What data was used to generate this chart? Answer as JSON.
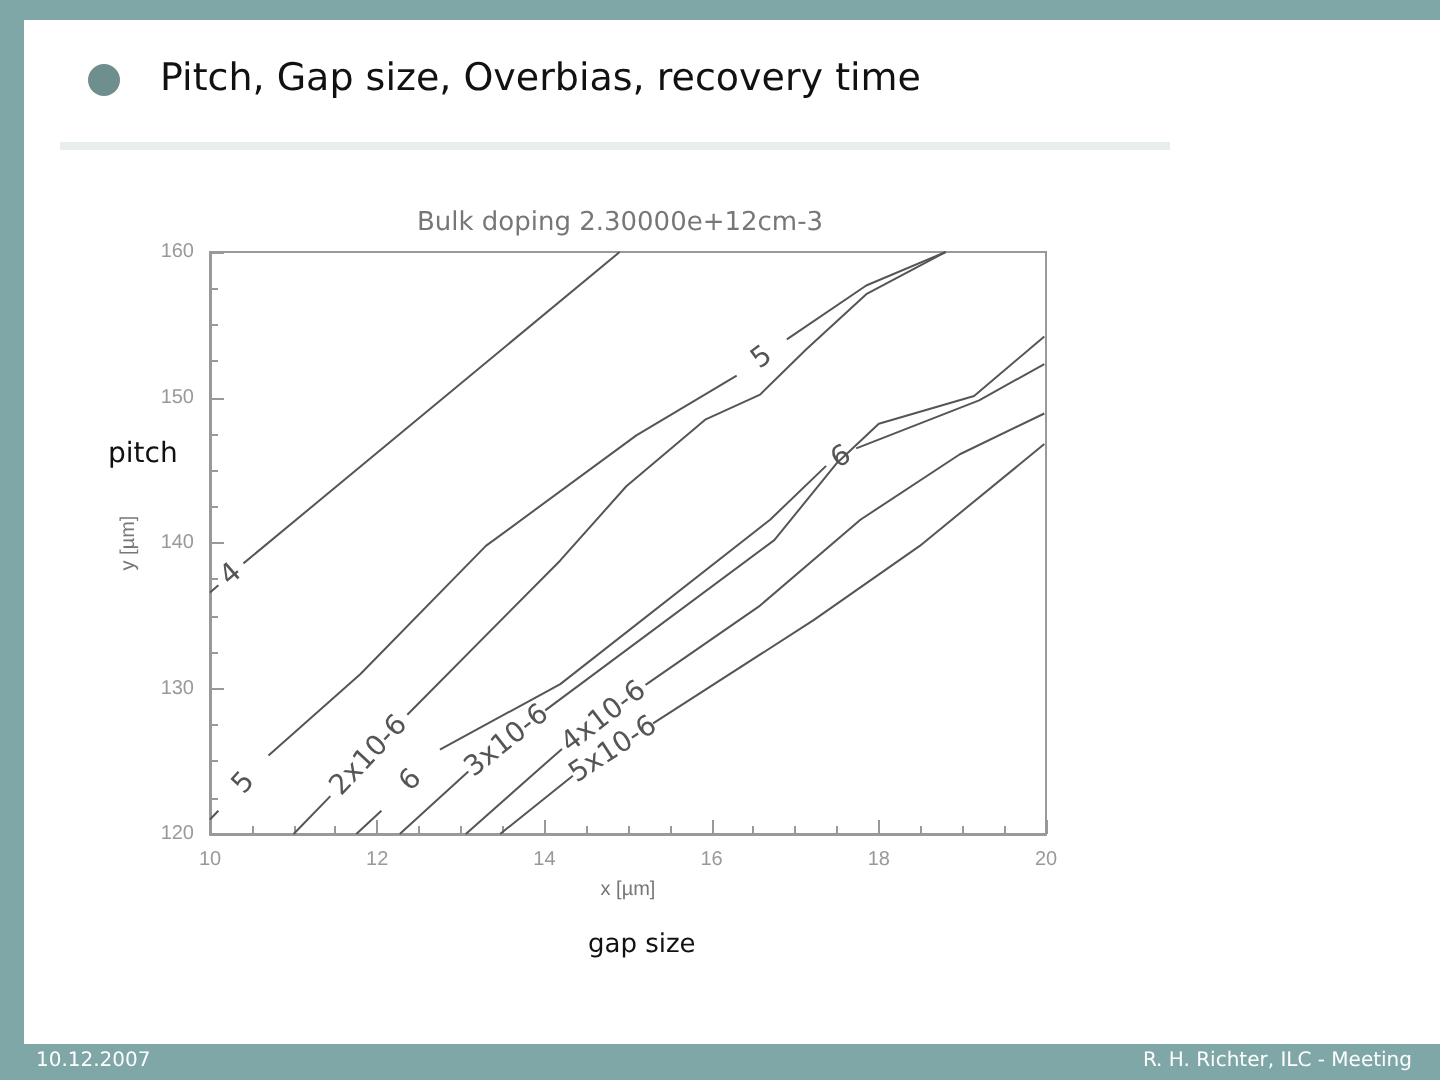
{
  "chart_data": {
    "type": "line",
    "title": "Pitch, Gap size, Overbias, recovery time",
    "subtitle": "Bulk doping    2.30000e+12cm-3",
    "xlabel": "x [µm]",
    "ylabel": "y [µm]",
    "annotations": [
      "pitch",
      "gap size",
      "10.12.2007",
      "R. H. Richter, ILC - Meeting"
    ],
    "xlim": [
      10,
      20
    ],
    "ylim": [
      120,
      160
    ],
    "xticks": [
      10,
      12,
      14,
      16,
      18,
      20
    ],
    "yticks": [
      120,
      130,
      140,
      150,
      160
    ],
    "grid": false,
    "legend": false,
    "marker": "none",
    "line_style": "solid",
    "series": [
      {
        "name": "4",
        "color": "#555555",
        "x": [
          10.0,
          10.1,
          10.25,
          10.4,
          14.9
        ],
        "values": [
          136.6,
          137.1,
          null,
          138.6,
          160
        ]
      },
      {
        "name": "5",
        "color": "#555555",
        "x": [
          10.0,
          10.1,
          10.4,
          10.7,
          11.8,
          13.3,
          15.1,
          16.3,
          16.6,
          16.9,
          17.85,
          18.8
        ],
        "values": [
          121,
          121.6,
          null,
          125.4,
          131,
          139.8,
          147.4,
          151.5,
          null,
          154,
          157.7,
          160
        ]
      },
      {
        "name": "2x10-6",
        "color": "#555555",
        "x": [
          11.0,
          11.44,
          11.9,
          12.36,
          14.19,
          14.98,
          15.93,
          16.58,
          17.13,
          17.85,
          18.8
        ],
        "values": [
          120,
          122.6,
          null,
          128.2,
          138.8,
          143.9,
          148.5,
          150.2,
          153.3,
          157.1,
          160
        ]
      },
      {
        "name": "6",
        "color": "#555555",
        "x": [
          11.75,
          12.05,
          12.4,
          12.75,
          14.19,
          16.7,
          17.37,
          17.55,
          17.73,
          19.2,
          19.98
        ],
        "values": [
          120,
          121.6,
          null,
          125.8,
          130.3,
          141.6,
          145.3,
          null,
          146.5,
          149.8,
          152.3
        ]
      },
      {
        "name": "3x10-6",
        "color": "#555555",
        "x": [
          12.27,
          13.09,
          13.55,
          14.01,
          16.75,
          17.5,
          18.0,
          19.14,
          19.98
        ],
        "values": [
          120,
          124.3,
          null,
          128.5,
          140.2,
          145.5,
          148.2,
          150.1,
          154.2
        ]
      },
      {
        "name": "4x10-6",
        "color": "#555555",
        "x": [
          13.06,
          14.21,
          14.7,
          15.21,
          16.58,
          17.78,
          18.97,
          19.98
        ],
        "values": [
          120,
          125.85,
          null,
          130.25,
          135.7,
          141.6,
          146.1,
          148.9
        ]
      },
      {
        "name": "5x10-6",
        "color": "#555555",
        "x": [
          13.47,
          14.34,
          14.8,
          15.3,
          17.22,
          18.49,
          19.98
        ],
        "values": [
          120,
          124.0,
          null,
          127.6,
          134.7,
          139.8,
          146.8
        ]
      }
    ]
  }
}
